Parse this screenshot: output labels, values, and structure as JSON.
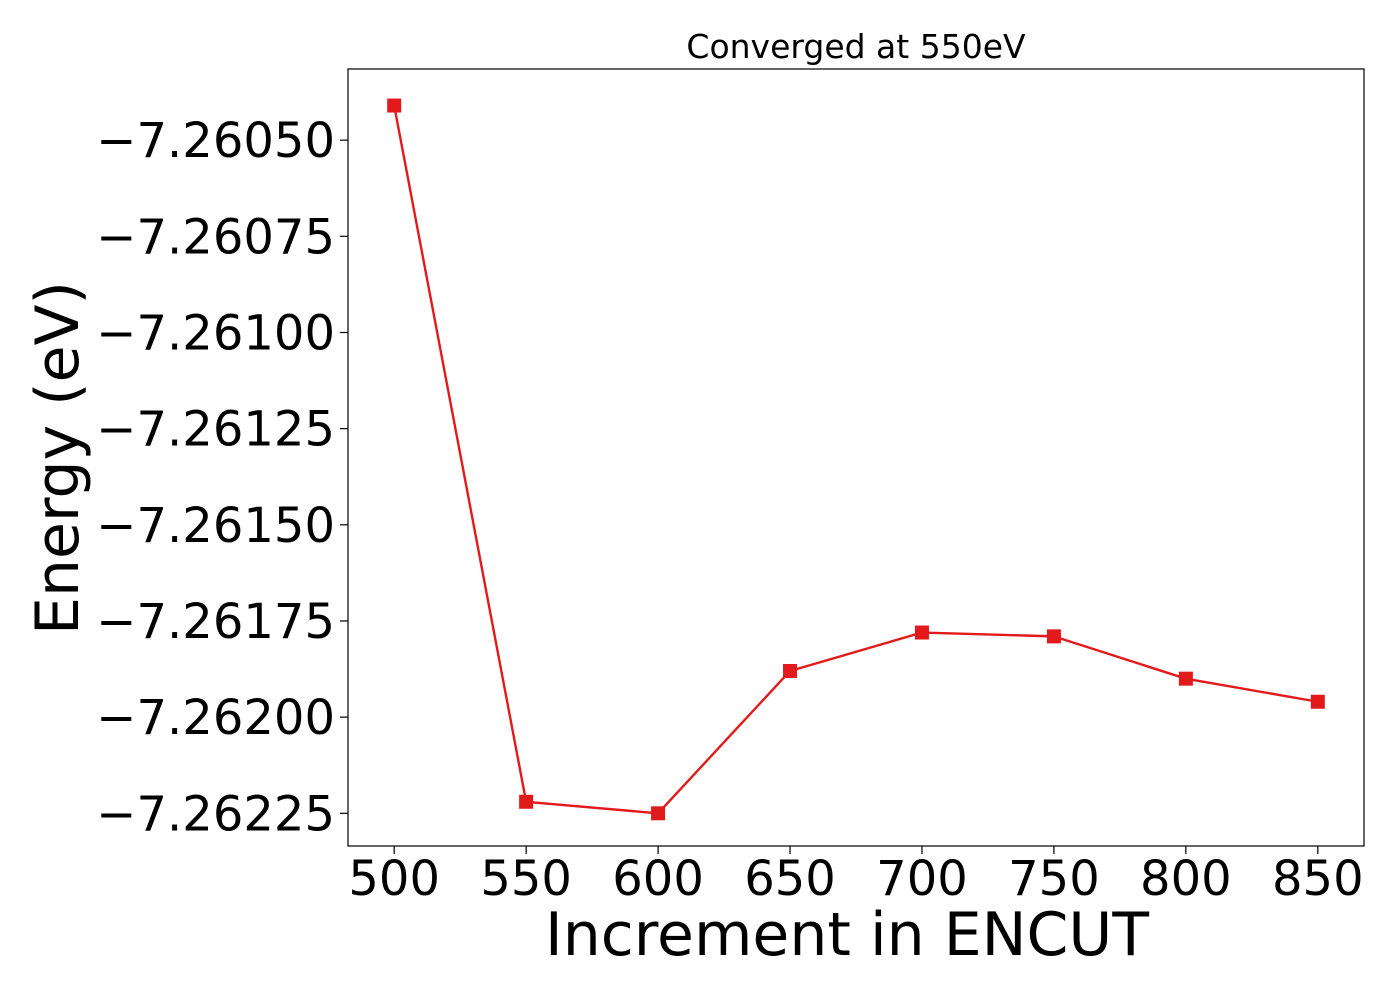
{
  "chart_data": {
    "type": "line",
    "title": "Converged at 550eV",
    "xlabel": "Increment in ENCUT",
    "ylabel": "Energy (eV)",
    "x": [
      500,
      550,
      600,
      650,
      700,
      750,
      800,
      850
    ],
    "series": [
      {
        "values": [
          -7.26041,
          -7.26222,
          -7.26225,
          -7.26188,
          -7.26178,
          -7.26179,
          -7.2619,
          -7.26196
        ],
        "color": "#e31a1c",
        "marker": "square"
      }
    ],
    "xticks": [
      500,
      550,
      600,
      650,
      700,
      750,
      800,
      850
    ],
    "xtick_labels": [
      "500",
      "550",
      "600",
      "650",
      "700",
      "750",
      "800",
      "850"
    ],
    "yticks": [
      -7.2605,
      -7.26075,
      -7.261,
      -7.26125,
      -7.2615,
      -7.26175,
      -7.262,
      -7.26225
    ],
    "ytick_labels": [
      "−7.26050",
      "−7.26075",
      "−7.26100",
      "−7.26125",
      "−7.26150",
      "−7.26175",
      "−7.26200",
      "−7.26225"
    ],
    "xlim": [
      482.5,
      867.5
    ],
    "ylim": [
      -7.262335,
      -7.260315
    ],
    "grid": false,
    "legend": "none"
  }
}
